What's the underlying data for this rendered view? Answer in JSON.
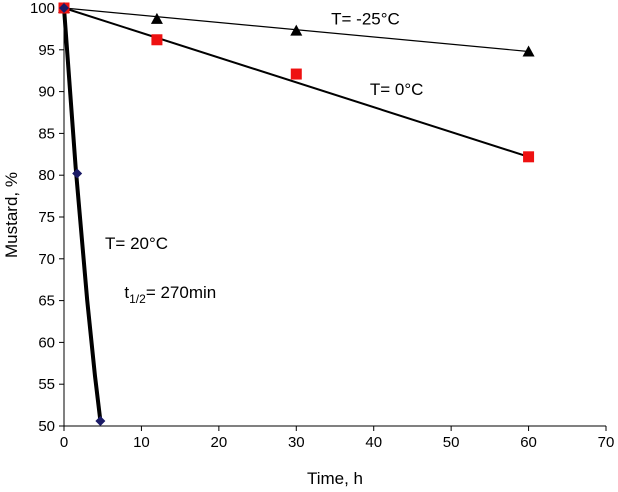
{
  "chart_data": {
    "type": "scatter",
    "title": "",
    "xlabel": "Time, h",
    "ylabel": "Mustard, %",
    "xlim": [
      0,
      70
    ],
    "ylim": [
      50,
      100
    ],
    "xticks": [
      "0",
      "10",
      "20",
      "30",
      "40",
      "50",
      "60",
      "70"
    ],
    "yticks": [
      "50",
      "55",
      "60",
      "65",
      "70",
      "75",
      "80",
      "85",
      "90",
      "95",
      "100"
    ],
    "grid": false,
    "series": [
      {
        "key": "m25",
        "marker": "triangle",
        "color": "#000000",
        "x": [
          0,
          12,
          30,
          60
        ],
        "y": [
          100,
          98.7,
          97.3,
          94.8
        ],
        "fit": {
          "type": "linear",
          "from": [
            0,
            100
          ],
          "to": [
            60,
            94.8
          ]
        }
      },
      {
        "key": "zero",
        "marker": "square",
        "color": "#ee1111",
        "x": [
          0,
          12,
          30,
          60
        ],
        "y": [
          100,
          96.2,
          92.1,
          82.2
        ],
        "fit": {
          "type": "linear",
          "from": [
            0,
            100
          ],
          "to": [
            60,
            82.2
          ]
        }
      },
      {
        "key": "twenty",
        "marker": "diamond",
        "color": "#1a1a66",
        "x": [
          0,
          1.7,
          4.7
        ],
        "y": [
          100,
          80.2,
          50.6
        ],
        "fit": {
          "type": "curve",
          "x": [
            0,
            1.5,
            3.0,
            4.0,
            4.7
          ],
          "y": [
            100,
            81,
            65,
            56,
            50.6
          ]
        }
      }
    ],
    "annotations": {
      "m25": {
        "text": "T= -25°C",
        "x": 34.5,
        "y": 98.0
      },
      "zero": {
        "text": "T= 0°C",
        "x": 39.5,
        "y": 89.6
      },
      "twenty": {
        "text": "T= 20°C",
        "x": 5.3,
        "y": 71.2
      },
      "half_life": {
        "prefix": "t",
        "sub": "1/2",
        "suffix": "= 270min",
        "x": 7.8,
        "y": 65.3
      }
    }
  }
}
